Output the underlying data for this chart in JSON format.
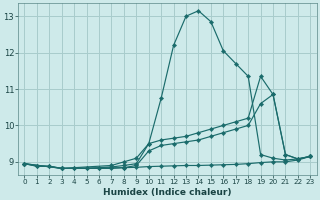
{
  "background_color": "#ceeaea",
  "grid_color": "#a8cccc",
  "line_color": "#1a6b6b",
  "marker": "D",
  "marker_size": 2.2,
  "xlabel": "Humidex (Indice chaleur)",
  "xlim": [
    -0.5,
    23.5
  ],
  "ylim": [
    8.65,
    13.35
  ],
  "yticks": [
    9,
    10,
    11,
    12,
    13
  ],
  "xticks": [
    0,
    1,
    2,
    3,
    4,
    5,
    6,
    7,
    8,
    9,
    10,
    11,
    12,
    13,
    14,
    15,
    16,
    17,
    18,
    19,
    20,
    21,
    22,
    23
  ],
  "series": [
    {
      "x": [
        0,
        1,
        2,
        3,
        4,
        5,
        6,
        7,
        8,
        9,
        10,
        11,
        12,
        13,
        14,
        15,
        16,
        17,
        18,
        19,
        20,
        21,
        22,
        23
      ],
      "y": [
        8.95,
        8.88,
        8.88,
        8.82,
        8.82,
        8.82,
        8.82,
        8.82,
        8.84,
        8.85,
        8.87,
        8.88,
        8.89,
        8.9,
        8.9,
        8.91,
        8.92,
        8.93,
        8.95,
        8.98,
        9.0,
        9.0,
        9.05,
        9.15
      ]
    },
    {
      "x": [
        0,
        1,
        2,
        3,
        4,
        5,
        6,
        7,
        8,
        9,
        10,
        11,
        12,
        13,
        14,
        15,
        16,
        17,
        18,
        19,
        20,
        21,
        22,
        23
      ],
      "y": [
        8.95,
        8.88,
        8.88,
        8.82,
        8.82,
        8.82,
        8.84,
        8.86,
        8.9,
        8.95,
        9.5,
        10.75,
        12.2,
        13.0,
        13.15,
        12.85,
        12.05,
        11.7,
        11.35,
        9.2,
        9.1,
        9.05,
        9.08,
        9.15
      ]
    },
    {
      "x": [
        0,
        3,
        7,
        8,
        9,
        10,
        11,
        12,
        13,
        14,
        15,
        16,
        17,
        18,
        19,
        20,
        21,
        22,
        23
      ],
      "y": [
        8.95,
        8.82,
        8.9,
        9.0,
        9.1,
        9.5,
        9.6,
        9.65,
        9.7,
        9.8,
        9.9,
        10.0,
        10.1,
        10.2,
        11.35,
        10.85,
        9.2,
        9.08,
        9.15
      ]
    },
    {
      "x": [
        0,
        3,
        8,
        9,
        10,
        11,
        12,
        13,
        14,
        15,
        16,
        17,
        18,
        19,
        20,
        21,
        22,
        23
      ],
      "y": [
        8.95,
        8.82,
        8.84,
        8.9,
        9.3,
        9.45,
        9.5,
        9.55,
        9.6,
        9.7,
        9.8,
        9.9,
        10.0,
        10.6,
        10.85,
        9.2,
        9.08,
        9.15
      ]
    }
  ]
}
